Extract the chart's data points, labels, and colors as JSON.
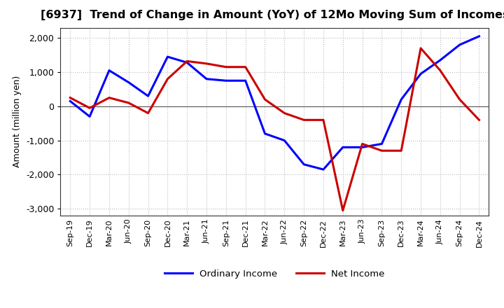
{
  "title": "[6937]  Trend of Change in Amount (YoY) of 12Mo Moving Sum of Incomes",
  "ylabel": "Amount (million yen)",
  "ylim": [
    -3200,
    2300
  ],
  "yticks": [
    -3000,
    -2000,
    -1000,
    0,
    1000,
    2000
  ],
  "background_color": "#ffffff",
  "grid_color": "#bbbbbb",
  "x_labels": [
    "Sep-19",
    "Dec-19",
    "Mar-20",
    "Jun-20",
    "Sep-20",
    "Dec-20",
    "Mar-21",
    "Jun-21",
    "Sep-21",
    "Dec-21",
    "Mar-22",
    "Jun-22",
    "Sep-22",
    "Dec-22",
    "Mar-23",
    "Jun-23",
    "Sep-23",
    "Dec-23",
    "Mar-24",
    "Jun-24",
    "Sep-24",
    "Dec-24"
  ],
  "ordinary_income": [
    150,
    -300,
    1050,
    700,
    300,
    1450,
    1280,
    800,
    750,
    750,
    -800,
    -1000,
    -1700,
    -1850,
    -1200,
    -1200,
    -1100,
    200,
    950,
    1350,
    1800,
    2050
  ],
  "net_income": [
    250,
    -50,
    250,
    100,
    -200,
    800,
    1320,
    1250,
    1150,
    1150,
    200,
    -200,
    -400,
    -400,
    -3050,
    -1100,
    -1300,
    -1300,
    1700,
    1050,
    200,
    -400
  ],
  "ordinary_color": "#0000ff",
  "net_color": "#cc0000",
  "line_width": 2.2
}
